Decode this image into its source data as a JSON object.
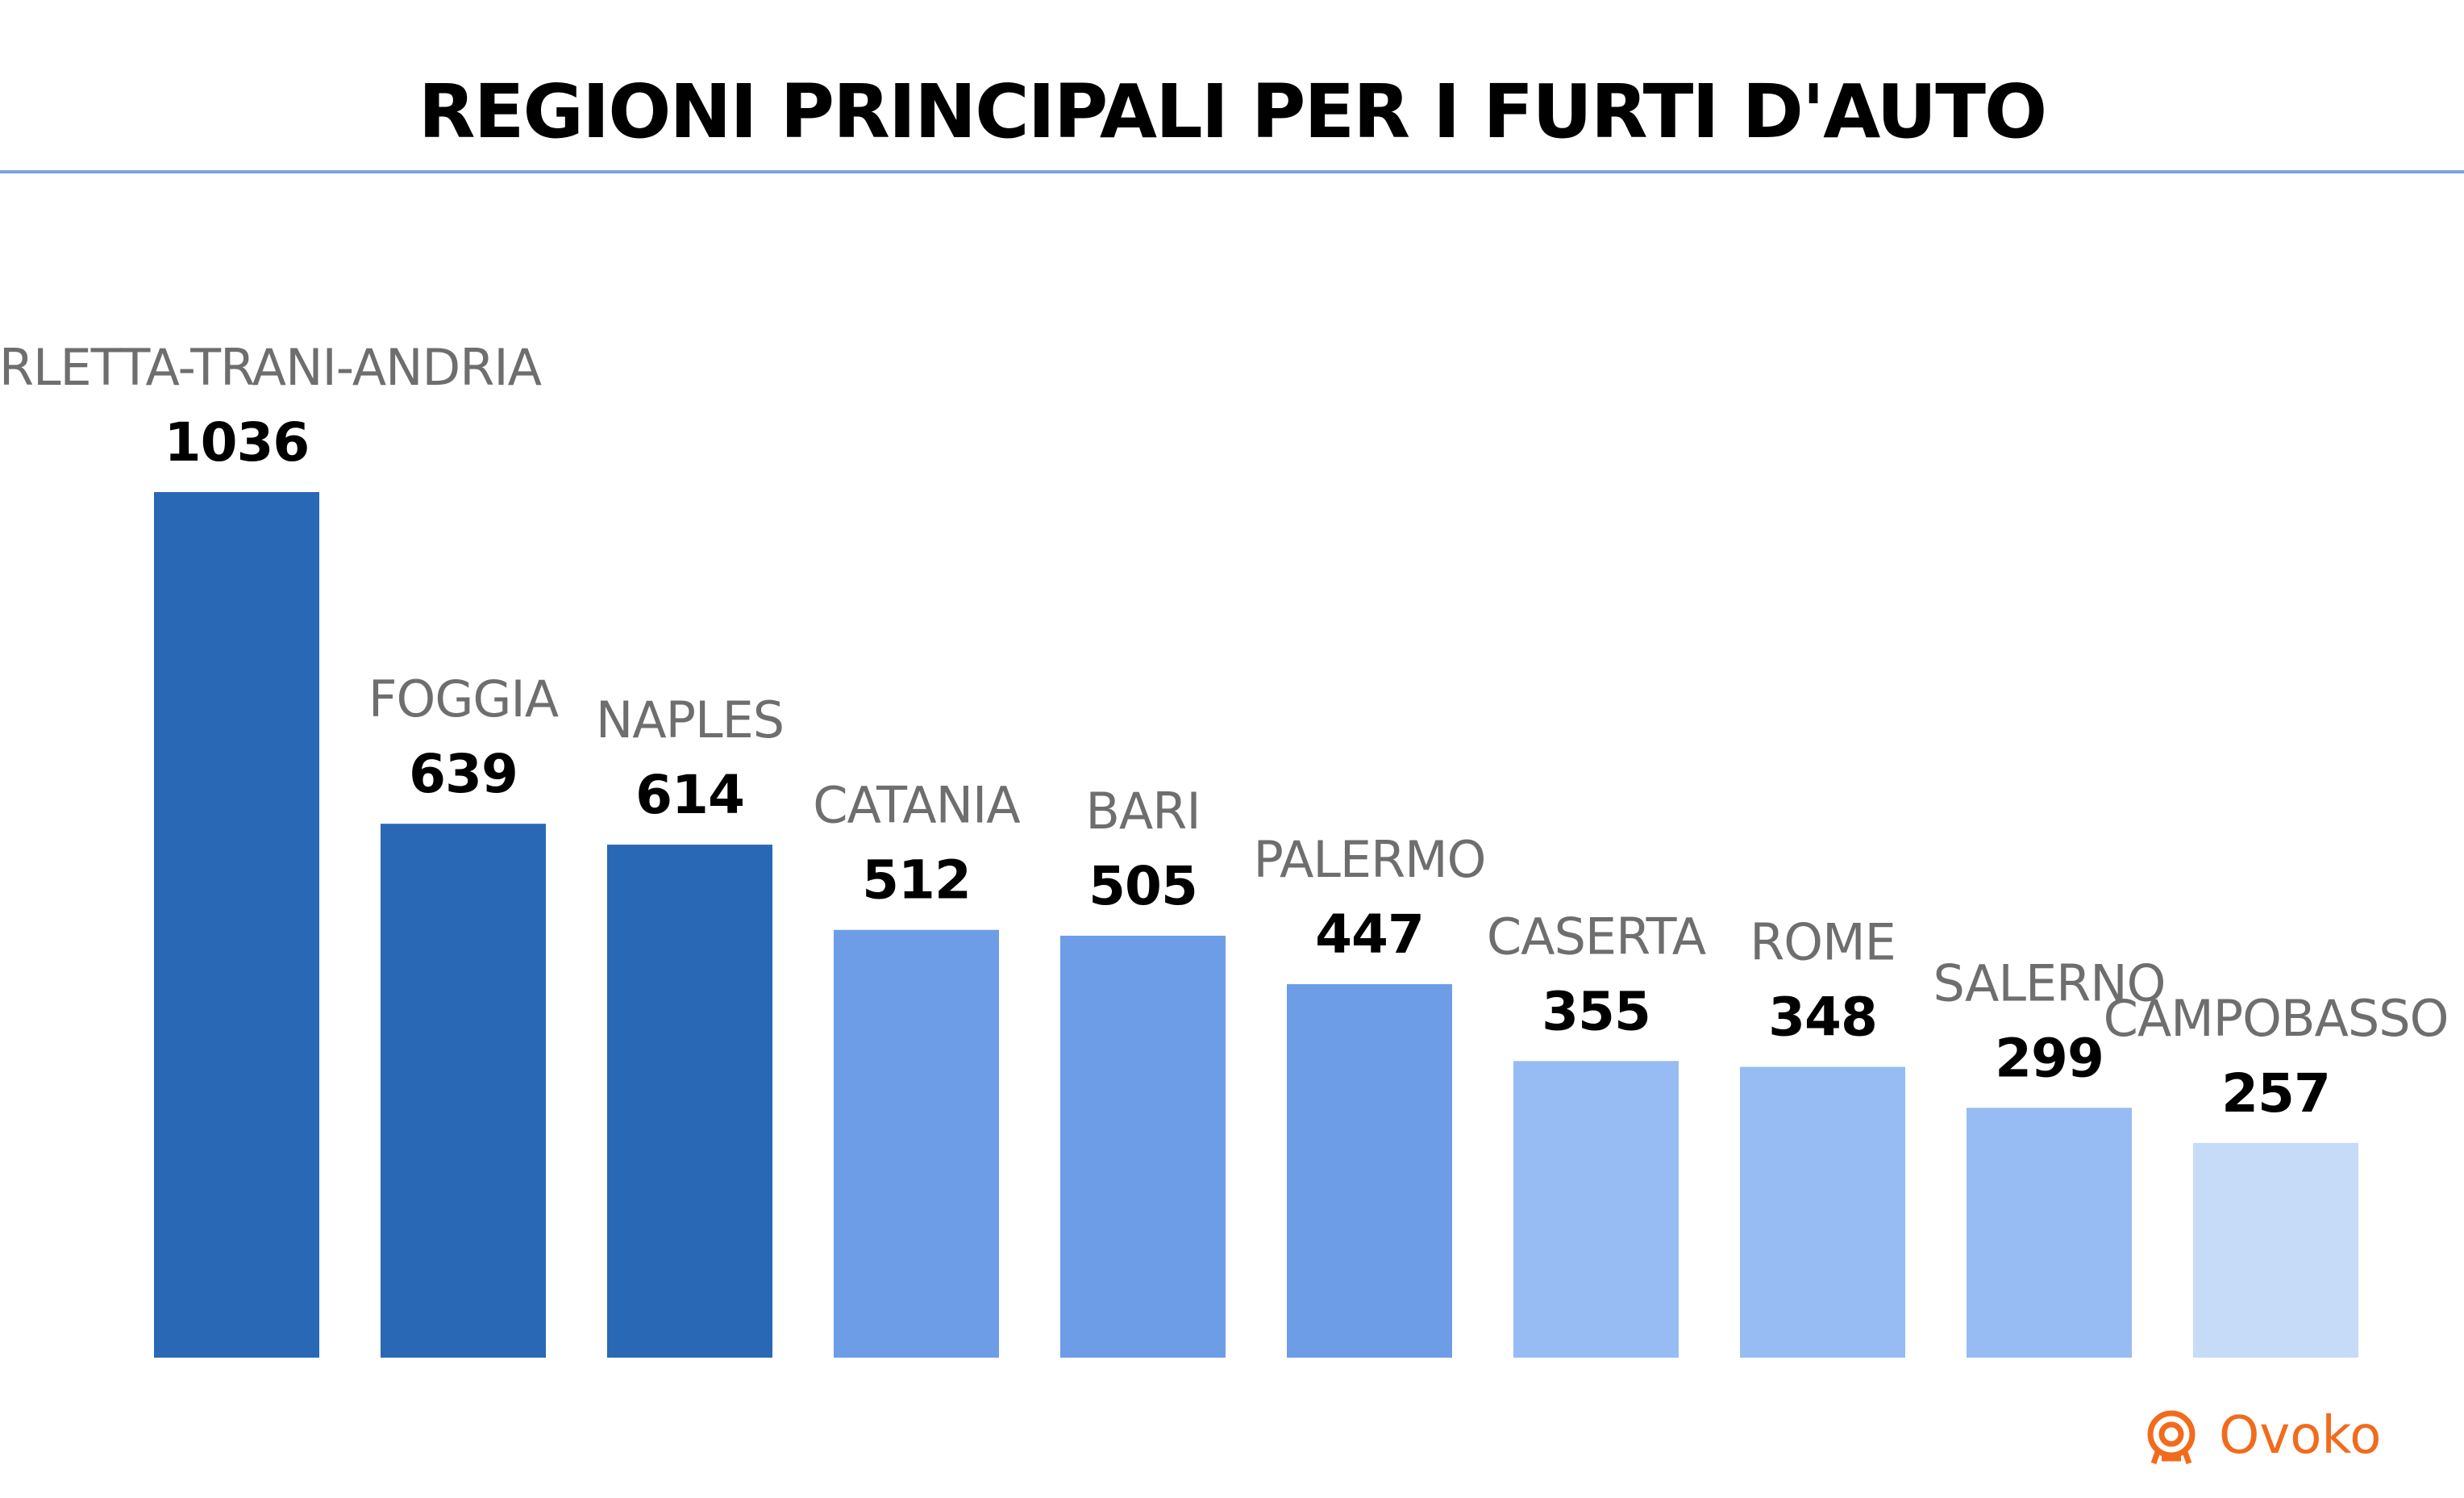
{
  "chart_data": {
    "type": "bar",
    "title": "REGIONI PRINCIPALI PER I FURTI D'AUTO",
    "xlabel": "",
    "ylabel": "",
    "ylim": [
      0,
      1036
    ],
    "grid": false,
    "legend": "none",
    "categories": [
      "BARLETTA-TRANI-ANDRIA",
      "FOGGIA",
      "NAPLES",
      "CATANIA",
      "BARI",
      "PALERMO",
      "CASERTA",
      "ROME",
      "SALERNO",
      "CAMPOBASSO"
    ],
    "values": [
      1036,
      639,
      614,
      512,
      505,
      447,
      355,
      348,
      299,
      257
    ],
    "value_labels": [
      "1036",
      "639",
      "614",
      "512",
      "505",
      "447",
      "355",
      "348",
      "299",
      "257"
    ],
    "bar_colors": [
      "#2968b5",
      "#2968b5",
      "#2968b5",
      "#6d9de6",
      "#6d9de6",
      "#6d9de6",
      "#96bcf3",
      "#96bcf3",
      "#96bcf3",
      "#c6dbf8"
    ]
  },
  "colors": {
    "title_rule": "#7aa4e0",
    "category_text": "#6e6e6e",
    "value_text": "#000000",
    "brand": "#f26b1d"
  },
  "brand": {
    "name": "Ovoko",
    "icon": "ovoko-logo-icon"
  }
}
